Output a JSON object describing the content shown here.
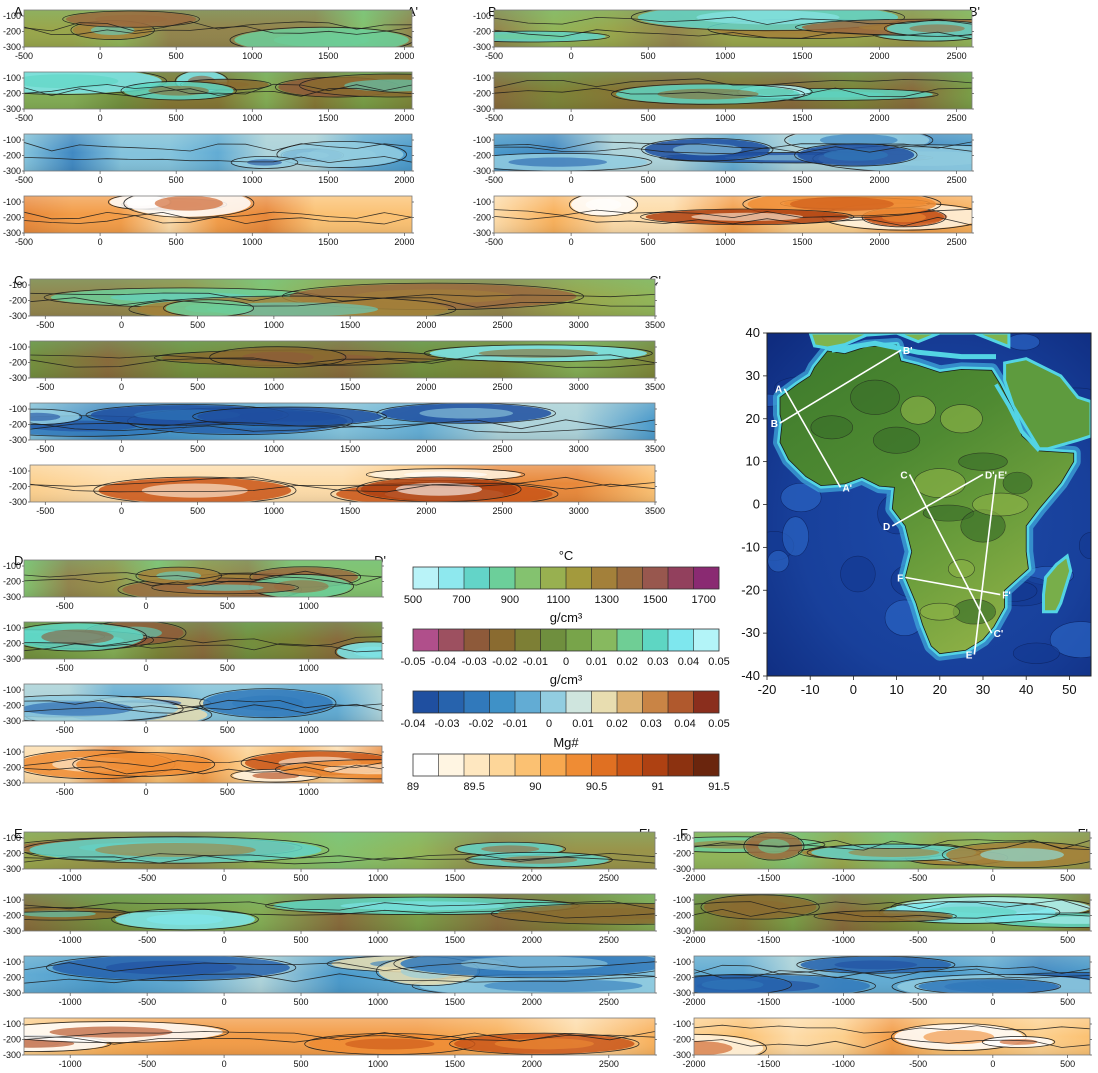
{
  "palettes": {
    "temp": [
      "#b9f3f8",
      "#8ee8ee",
      "#63d4c8",
      "#6ccf9a",
      "#84c26f",
      "#98b050",
      "#a39a3d",
      "#a3803a",
      "#9a6a3e",
      "#98574e",
      "#92405d",
      "#8a2a72"
    ],
    "rho1": [
      "#b04f8b",
      "#9d5060",
      "#8e5a3a",
      "#8a6b30",
      "#7d7f35",
      "#6f8f3e",
      "#78a44a",
      "#87b95f",
      "#6fce95",
      "#5ed6c3",
      "#7ee7ee",
      "#b3f4f8"
    ],
    "rho2": [
      "#1f4fa0",
      "#2763ad",
      "#3179bb",
      "#3f91c7",
      "#62acd4",
      "#92cde0",
      "#cfe5de",
      "#e8ddb0",
      "#ddb373",
      "#c98445",
      "#b0592d",
      "#8a2e1d"
    ],
    "mg": [
      "#ffffff",
      "#fff5e2",
      "#fee7c0",
      "#fdd699",
      "#fbc172",
      "#f7a84f",
      "#ef8c34",
      "#e07022",
      "#c95517",
      "#ae4112",
      "#8c3210",
      "#6a250d"
    ]
  },
  "colorbars": [
    {
      "label": "°C",
      "palette": "temp",
      "ticks": [
        "500",
        "700",
        "900",
        "1100",
        "1300",
        "1500",
        "1700"
      ]
    },
    {
      "label": "g/cm³",
      "palette": "rho1",
      "ticks": [
        "-0.05",
        "-0.04",
        "-0.03",
        "-0.02",
        "-0.01",
        "0",
        "0.01",
        "0.02",
        "0.03",
        "0.04",
        "0.05"
      ]
    },
    {
      "label": "g/cm³",
      "palette": "rho2",
      "ticks": [
        "-0.04",
        "-0.03",
        "-0.02",
        "-0.01",
        "0",
        "0.01",
        "0.02",
        "0.03",
        "0.04",
        "0.05"
      ]
    },
    {
      "label": "Mg#",
      "palette": "mg",
      "ticks": [
        "89",
        "89.5",
        "90",
        "90.5",
        "91",
        "91.5"
      ]
    }
  ],
  "chart_data": [
    {
      "type": "heatmap",
      "profile": "A",
      "end": "A'",
      "xlim": [
        -500,
        2050
      ],
      "xticks": [
        "-500",
        "0",
        "500",
        "1000",
        "1500",
        "2000"
      ],
      "yticks": [
        "-100",
        "-200",
        "-300"
      ],
      "panels": [
        "temp",
        "rho1",
        "rho2",
        "mg"
      ],
      "seed": 11
    },
    {
      "type": "heatmap",
      "profile": "B",
      "end": "B'",
      "xlim": [
        -500,
        2600
      ],
      "xticks": [
        "-500",
        "0",
        "500",
        "1000",
        "1500",
        "2000",
        "2500"
      ],
      "yticks": [
        "-100",
        "-200",
        "-300"
      ],
      "panels": [
        "temp",
        "rho1",
        "rho2",
        "mg"
      ],
      "seed": 23
    },
    {
      "type": "heatmap",
      "profile": "C",
      "end": "C'",
      "xlim": [
        -600,
        3500
      ],
      "xticks": [
        "-500",
        "0",
        "500",
        "1000",
        "1500",
        "2000",
        "2500",
        "3000",
        "3500"
      ],
      "yticks": [
        "-100",
        "-200",
        "-300"
      ],
      "panels": [
        "temp",
        "rho1",
        "rho2",
        "mg"
      ],
      "seed": 37
    },
    {
      "type": "heatmap",
      "profile": "D",
      "end": "D'",
      "xlim": [
        -750,
        1450
      ],
      "xticks": [
        "-500",
        "0",
        "500",
        "1000"
      ],
      "yticks": [
        "-100",
        "-200",
        "-300"
      ],
      "panels": [
        "temp",
        "rho1",
        "rho2",
        "mg"
      ],
      "seed": 41
    },
    {
      "type": "heatmap",
      "profile": "E",
      "end": "E'",
      "xlim": [
        -1300,
        2800
      ],
      "xticks": [
        "-1000",
        "-500",
        "0",
        "500",
        "1000",
        "1500",
        "2000",
        "2500"
      ],
      "yticks": [
        "-100",
        "-200",
        "-300"
      ],
      "panels": [
        "temp",
        "rho1",
        "rho2",
        "mg"
      ],
      "seed": 53
    },
    {
      "type": "heatmap",
      "profile": "F",
      "end": "F'",
      "xlim": [
        -2000,
        650
      ],
      "xticks": [
        "-2000",
        "-1500",
        "-1000",
        "-500",
        "0",
        "500"
      ],
      "yticks": [
        "-100",
        "-200",
        "-300"
      ],
      "panels": [
        "temp",
        "rho1",
        "rho2",
        "mg"
      ],
      "seed": 67
    }
  ],
  "map": {
    "xlim": [
      -20,
      55
    ],
    "ylim": [
      -40,
      40
    ],
    "xticks": [
      "-20",
      "-10",
      "0",
      "10",
      "20",
      "30",
      "40",
      "50"
    ],
    "yticks": [
      "40",
      "30",
      "20",
      "10",
      "0",
      "-10",
      "-20",
      "-30",
      "-40"
    ],
    "profiles": [
      {
        "start": "A",
        "end": "A'",
        "from": [
          -16,
          27
        ],
        "to": [
          -3,
          4
        ]
      },
      {
        "start": "B",
        "end": "B'",
        "from": [
          -17,
          19
        ],
        "to": [
          11,
          36
        ]
      },
      {
        "start": "C",
        "end": "C'",
        "from": [
          13,
          7
        ],
        "to": [
          32,
          -30
        ]
      },
      {
        "start": "D",
        "end": "D'",
        "from": [
          9,
          -5
        ],
        "to": [
          30,
          7
        ]
      },
      {
        "start": "E",
        "end": "E'",
        "from": [
          28,
          -35
        ],
        "to": [
          33,
          7
        ]
      },
      {
        "start": "F",
        "end": "F'",
        "from": [
          12,
          -17
        ],
        "to": [
          34,
          -21
        ]
      }
    ]
  }
}
